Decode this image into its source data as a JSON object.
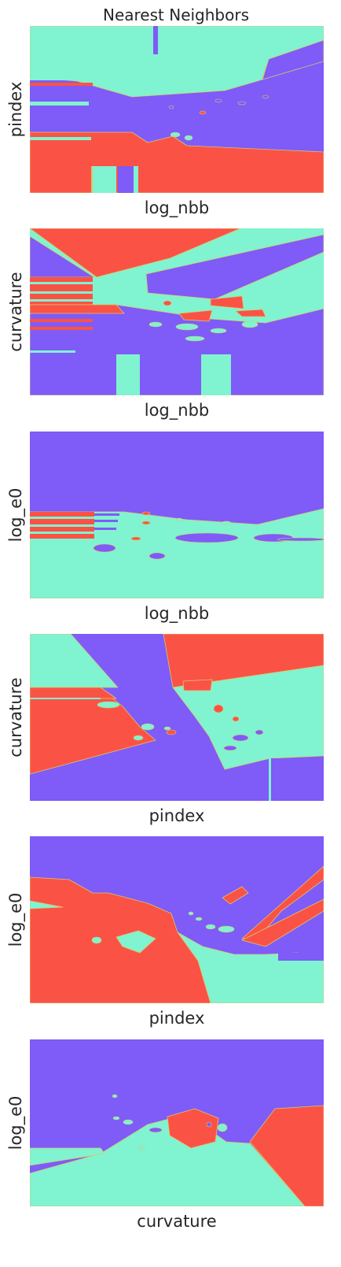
{
  "title": "Nearest Neighbors",
  "colors": {
    "class_0": "#7f5bf8",
    "class_1": "#80f3d0",
    "class_2": "#fb5246",
    "boundary": "#d8c86a",
    "text": "#262626"
  },
  "chart_data": [
    {
      "type": "heatmap",
      "title": "Nearest Neighbors",
      "xlabel": "log_nbb",
      "ylabel": "pindex",
      "xticks": [],
      "yticks": [],
      "classes": [
        "class_0",
        "class_1",
        "class_2"
      ]
    },
    {
      "type": "heatmap",
      "xlabel": "log_nbb",
      "ylabel": "curvature",
      "xticks": [],
      "yticks": [],
      "classes": [
        "class_0",
        "class_1",
        "class_2"
      ]
    },
    {
      "type": "heatmap",
      "xlabel": "log_nbb",
      "ylabel": "log_e0",
      "xticks": [],
      "yticks": [],
      "classes": [
        "class_0",
        "class_1",
        "class_2"
      ]
    },
    {
      "type": "heatmap",
      "xlabel": "pindex",
      "ylabel": "curvature",
      "xticks": [],
      "yticks": [],
      "classes": [
        "class_0",
        "class_1",
        "class_2"
      ]
    },
    {
      "type": "heatmap",
      "xlabel": "pindex",
      "ylabel": "log_e0",
      "xticks": [],
      "yticks": [],
      "classes": [
        "class_0",
        "class_1",
        "class_2"
      ]
    },
    {
      "type": "heatmap",
      "xlabel": "curvature",
      "ylabel": "log_e0",
      "xticks": [],
      "yticks": [],
      "classes": [
        "class_0",
        "class_1",
        "class_2"
      ]
    }
  ]
}
